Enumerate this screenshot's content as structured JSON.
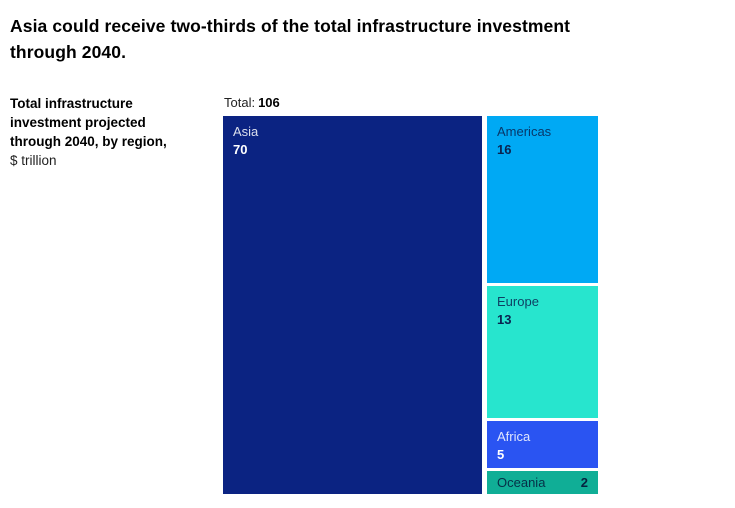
{
  "title": {
    "line1": "Asia could receive two-thirds of the total infrastructure investment",
    "line2": "through 2040."
  },
  "description": {
    "line1": "Total infrastructure",
    "line2": "investment projected",
    "line3": "through 2040, by region,",
    "line4": "$ trillion"
  },
  "total": {
    "label": "Total:",
    "value": "106"
  },
  "chart_data": {
    "type": "treemap",
    "title": "Asia could receive two-thirds of the total infrastructure investment through 2040.",
    "subtitle": "Total infrastructure investment projected through 2040, by region, $ trillion",
    "unit": "$ trillion",
    "total": 106,
    "layout": "Asia fills left column full height; right column stacked top-to-bottom: Americas, Europe, Africa, Oceania; white 3-5px gutters between blocks; legend none; axes none",
    "regions": [
      {
        "name": "Asia",
        "value": 70,
        "color": "#0B2382",
        "text_color": "#FFFFFF"
      },
      {
        "name": "Americas",
        "value": 16,
        "color": "#00A9F4",
        "text_color": "#0A2350"
      },
      {
        "name": "Europe",
        "value": 13,
        "color": "#27E5CE",
        "text_color": "#0A2350"
      },
      {
        "name": "Africa",
        "value": 5,
        "color": "#2A54F2",
        "text_color": "#FFFFFF"
      },
      {
        "name": "Oceania",
        "value": 2,
        "color": "#10AE96",
        "text_color": "#05233F"
      }
    ]
  }
}
